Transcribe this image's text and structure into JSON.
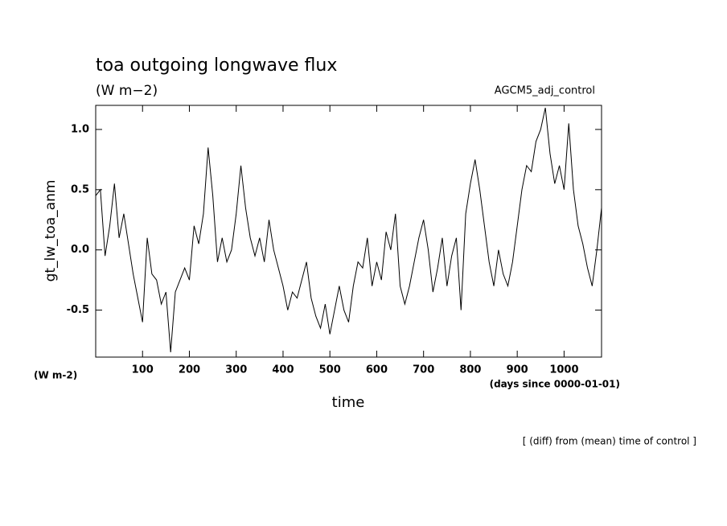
{
  "chart_data": {
    "type": "line",
    "title": "toa outgoing longwave flux",
    "subtitle": "(W m−2)",
    "run_label": "AGCM5_adj_control",
    "y_label": "gt_lw_toa_anm",
    "y_unit": "(W m-2)",
    "x_label": "time",
    "x_unit": "(days since 0000-01-01)",
    "annotation": "[ (diff) from (mean) time of control ]",
    "color": "#000000",
    "xlim": [
      0,
      1080
    ],
    "xticks": [
      100,
      200,
      300,
      400,
      500,
      600,
      700,
      800,
      900,
      1000
    ],
    "ylim": [
      -0.89,
      1.2
    ],
    "yticks": [
      -0.5,
      {
        "value": 0,
        "label": "0.0"
      },
      0.5,
      {
        "value": 1,
        "label": "1.0"
      }
    ],
    "x": [
      0,
      10,
      20,
      30,
      40,
      50,
      60,
      70,
      80,
      90,
      100,
      110,
      120,
      130,
      140,
      150,
      160,
      170,
      180,
      190,
      200,
      210,
      220,
      230,
      240,
      250,
      260,
      270,
      280,
      290,
      300,
      310,
      320,
      330,
      340,
      350,
      360,
      370,
      380,
      390,
      400,
      410,
      420,
      430,
      440,
      450,
      460,
      470,
      480,
      490,
      500,
      510,
      520,
      530,
      540,
      550,
      560,
      570,
      580,
      590,
      600,
      610,
      620,
      630,
      640,
      650,
      660,
      670,
      680,
      690,
      700,
      710,
      720,
      730,
      740,
      750,
      760,
      770,
      780,
      790,
      800,
      810,
      820,
      830,
      840,
      850,
      860,
      870,
      880,
      890,
      900,
      910,
      920,
      930,
      940,
      950,
      960,
      970,
      980,
      990,
      1000,
      1010,
      1020,
      1030,
      1040,
      1050,
      1060,
      1070,
      1080
    ],
    "values": [
      0.45,
      0.5,
      -0.05,
      0.2,
      0.55,
      0.1,
      0.3,
      0.05,
      -0.2,
      -0.4,
      -0.6,
      0.1,
      -0.2,
      -0.25,
      -0.45,
      -0.35,
      -0.85,
      -0.35,
      -0.25,
      -0.15,
      -0.25,
      0.2,
      0.05,
      0.3,
      0.85,
      0.45,
      -0.1,
      0.1,
      -0.1,
      0.0,
      0.3,
      0.7,
      0.35,
      0.1,
      -0.05,
      0.1,
      -0.1,
      0.25,
      0.0,
      -0.15,
      -0.3,
      -0.5,
      -0.35,
      -0.4,
      -0.25,
      -0.1,
      -0.4,
      -0.55,
      -0.65,
      -0.45,
      -0.7,
      -0.5,
      -0.3,
      -0.5,
      -0.6,
      -0.3,
      -0.1,
      -0.15,
      0.1,
      -0.3,
      -0.1,
      -0.25,
      0.15,
      0.0,
      0.3,
      -0.3,
      -0.45,
      -0.3,
      -0.1,
      0.1,
      0.25,
      0.0,
      -0.35,
      -0.15,
      0.1,
      -0.3,
      -0.05,
      0.1,
      -0.5,
      0.3,
      0.55,
      0.75,
      0.5,
      0.2,
      -0.1,
      -0.3,
      0.0,
      -0.2,
      -0.3,
      -0.1,
      0.2,
      0.5,
      0.7,
      0.65,
      0.9,
      1.0,
      1.18,
      0.8,
      0.55,
      0.7,
      0.5,
      1.05,
      0.5,
      0.2,
      0.05,
      -0.15,
      -0.3,
      0.0,
      0.35
    ]
  }
}
